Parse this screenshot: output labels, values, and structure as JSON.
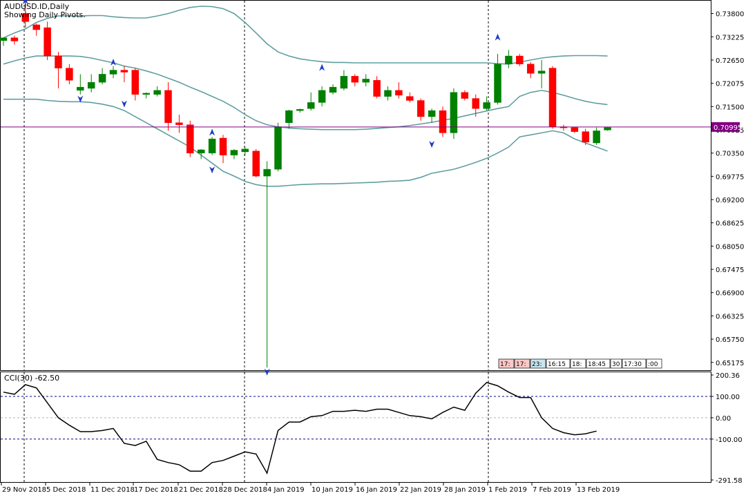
{
  "header": {
    "symbol_line": "AUDUSD.ID,Daily",
    "pivots_line": "Showing Daily Pivots."
  },
  "price_axis": {
    "ticks": [
      "0.73800",
      "0.73225",
      "0.72650",
      "0.72075",
      "0.71500",
      "0.70925",
      "0.70350",
      "0.69775",
      "0.69200",
      "0.68625",
      "0.68050",
      "0.67475",
      "0.66900",
      "0.66325",
      "0.65750",
      "0.65175"
    ],
    "current_price_label": "0.70995"
  },
  "time_axis": {
    "labels": [
      "29 Nov 2018",
      "5 Dec 2018",
      "11 Dec 2018",
      "17 Dec 2018",
      "21 Dec 2018",
      "28 Dec 2018",
      "4 Jan 2019",
      "10 Jan 2019",
      "16 Jan 2019",
      "22 Jan 2019",
      "28 Jan 2019",
      "1 Feb 2019",
      "7 Feb 2019",
      "13 Feb 2019"
    ]
  },
  "session_boxes": [
    "17:",
    "17:",
    "23:",
    "16:15",
    "18:",
    "18:45",
    "30",
    "17:30",
    ":00"
  ],
  "cci": {
    "title": "CCI(30) -62.50",
    "ticks": [
      "200.36",
      "100.00",
      "0.00",
      "-100.00",
      "-291.58"
    ]
  },
  "colors": {
    "bull": "#008000",
    "bear": "#ff0000",
    "bands": "#5f9ea0",
    "current_price_line": "#800080",
    "cci_line": "#000000",
    "level_line": "#00008b",
    "arrow": "#1e3cc8"
  },
  "chart_data": [
    {
      "type": "candlestick",
      "title": "AUDUSD.ID,Daily",
      "ylim": [
        0.65,
        0.741
      ],
      "current_price": 0.70995,
      "candles": [
        {
          "o": 0.7313,
          "h": 0.732,
          "l": 0.73,
          "c": 0.732
        },
        {
          "o": 0.732,
          "h": 0.7325,
          "l": 0.7303,
          "c": 0.7312
        },
        {
          "o": 0.738,
          "h": 0.741,
          "l": 0.7345,
          "c": 0.736
        },
        {
          "o": 0.7352,
          "h": 0.7355,
          "l": 0.7325,
          "c": 0.734
        },
        {
          "o": 0.7345,
          "h": 0.736,
          "l": 0.7265,
          "c": 0.7275
        },
        {
          "o": 0.7275,
          "h": 0.7285,
          "l": 0.7195,
          "c": 0.7245
        },
        {
          "o": 0.7245,
          "h": 0.7255,
          "l": 0.7205,
          "c": 0.7215
        },
        {
          "o": 0.719,
          "h": 0.723,
          "l": 0.718,
          "c": 0.7198
        },
        {
          "o": 0.7195,
          "h": 0.723,
          "l": 0.7185,
          "c": 0.721
        },
        {
          "o": 0.721,
          "h": 0.7245,
          "l": 0.7205,
          "c": 0.723
        },
        {
          "o": 0.723,
          "h": 0.725,
          "l": 0.722,
          "c": 0.724
        },
        {
          "o": 0.724,
          "h": 0.725,
          "l": 0.721,
          "c": 0.7235
        },
        {
          "o": 0.724,
          "h": 0.7245,
          "l": 0.7165,
          "c": 0.718
        },
        {
          "o": 0.718,
          "h": 0.7185,
          "l": 0.717,
          "c": 0.7183
        },
        {
          "o": 0.718,
          "h": 0.72,
          "l": 0.7175,
          "c": 0.719
        },
        {
          "o": 0.719,
          "h": 0.721,
          "l": 0.709,
          "c": 0.711
        },
        {
          "o": 0.711,
          "h": 0.713,
          "l": 0.7085,
          "c": 0.7105
        },
        {
          "o": 0.7105,
          "h": 0.7115,
          "l": 0.7025,
          "c": 0.7035
        },
        {
          "o": 0.7035,
          "h": 0.7045,
          "l": 0.702,
          "c": 0.7043
        },
        {
          "o": 0.7035,
          "h": 0.7075,
          "l": 0.703,
          "c": 0.707
        },
        {
          "o": 0.7072,
          "h": 0.708,
          "l": 0.701,
          "c": 0.703
        },
        {
          "o": 0.703,
          "h": 0.7045,
          "l": 0.702,
          "c": 0.7042
        },
        {
          "o": 0.7038,
          "h": 0.705,
          "l": 0.703,
          "c": 0.7045
        },
        {
          "o": 0.704,
          "h": 0.7045,
          "l": 0.6975,
          "c": 0.6978
        },
        {
          "o": 0.6978,
          "h": 0.7015,
          "l": 0.6505,
          "c": 0.6995
        },
        {
          "o": 0.6995,
          "h": 0.711,
          "l": 0.699,
          "c": 0.71
        },
        {
          "o": 0.711,
          "h": 0.7142,
          "l": 0.7095,
          "c": 0.714
        },
        {
          "o": 0.714,
          "h": 0.7145,
          "l": 0.7135,
          "c": 0.7143
        },
        {
          "o": 0.7145,
          "h": 0.7185,
          "l": 0.714,
          "c": 0.716
        },
        {
          "o": 0.716,
          "h": 0.72,
          "l": 0.715,
          "c": 0.719
        },
        {
          "o": 0.7185,
          "h": 0.7205,
          "l": 0.718,
          "c": 0.7198
        },
        {
          "o": 0.7195,
          "h": 0.724,
          "l": 0.719,
          "c": 0.7225
        },
        {
          "o": 0.7225,
          "h": 0.723,
          "l": 0.72,
          "c": 0.721
        },
        {
          "o": 0.721,
          "h": 0.723,
          "l": 0.72,
          "c": 0.7218
        },
        {
          "o": 0.7215,
          "h": 0.7225,
          "l": 0.717,
          "c": 0.7175
        },
        {
          "o": 0.7175,
          "h": 0.72,
          "l": 0.7165,
          "c": 0.719
        },
        {
          "o": 0.719,
          "h": 0.721,
          "l": 0.717,
          "c": 0.7178
        },
        {
          "o": 0.7175,
          "h": 0.7185,
          "l": 0.716,
          "c": 0.7165
        },
        {
          "o": 0.7165,
          "h": 0.717,
          "l": 0.7115,
          "c": 0.7125
        },
        {
          "o": 0.7125,
          "h": 0.7145,
          "l": 0.711,
          "c": 0.714
        },
        {
          "o": 0.714,
          "h": 0.715,
          "l": 0.7075,
          "c": 0.7085
        },
        {
          "o": 0.7085,
          "h": 0.7195,
          "l": 0.707,
          "c": 0.7185
        },
        {
          "o": 0.7185,
          "h": 0.719,
          "l": 0.7165,
          "c": 0.717
        },
        {
          "o": 0.717,
          "h": 0.718,
          "l": 0.7125,
          "c": 0.7145
        },
        {
          "o": 0.7145,
          "h": 0.7175,
          "l": 0.714,
          "c": 0.716
        },
        {
          "o": 0.716,
          "h": 0.728,
          "l": 0.7155,
          "c": 0.7255
        },
        {
          "o": 0.7255,
          "h": 0.729,
          "l": 0.7245,
          "c": 0.7275
        },
        {
          "o": 0.7275,
          "h": 0.728,
          "l": 0.725,
          "c": 0.7255
        },
        {
          "o": 0.7255,
          "h": 0.726,
          "l": 0.722,
          "c": 0.7232
        },
        {
          "o": 0.7232,
          "h": 0.7265,
          "l": 0.7195,
          "c": 0.7238
        },
        {
          "o": 0.7245,
          "h": 0.725,
          "l": 0.7095,
          "c": 0.71
        },
        {
          "o": 0.71,
          "h": 0.7105,
          "l": 0.709,
          "c": 0.7098
        },
        {
          "o": 0.7098,
          "h": 0.71,
          "l": 0.7085,
          "c": 0.7088
        },
        {
          "o": 0.7088,
          "h": 0.7095,
          "l": 0.7055,
          "c": 0.7062
        },
        {
          "o": 0.706,
          "h": 0.7098,
          "l": 0.7055,
          "c": 0.709
        },
        {
          "o": 0.7092,
          "h": 0.71,
          "l": 0.709,
          "c": 0.7098
        }
      ],
      "bands": {
        "upper": [
          0.732,
          0.7332,
          0.7342,
          0.7358,
          0.7368,
          0.7374,
          0.7374,
          0.7374,
          0.7375,
          0.7375,
          0.7372,
          0.737,
          0.7369,
          0.7369,
          0.7374,
          0.738,
          0.7388,
          0.7395,
          0.7398,
          0.7397,
          0.7392,
          0.738,
          0.7358,
          0.7332,
          0.7305,
          0.7285,
          0.7275,
          0.7268,
          0.7264,
          0.7261,
          0.7259,
          0.7259,
          0.7258,
          0.7258,
          0.7258,
          0.7258,
          0.7258,
          0.7258,
          0.7258,
          0.7258,
          0.7258,
          0.7258,
          0.7258,
          0.7258,
          0.7258,
          0.7256,
          0.7255,
          0.726,
          0.7265,
          0.727,
          0.7273,
          0.7275,
          0.7276,
          0.7276,
          0.7276,
          0.7275
        ],
        "middle": [
          0.7255,
          0.7263,
          0.727,
          0.7275,
          0.7275,
          0.7275,
          0.7275,
          0.7274,
          0.727,
          0.7264,
          0.7258,
          0.725,
          0.7245,
          0.7238,
          0.723,
          0.722,
          0.721,
          0.7198,
          0.7187,
          0.7175,
          0.7163,
          0.7148,
          0.713,
          0.7115,
          0.7105,
          0.71,
          0.7097,
          0.7095,
          0.7094,
          0.7093,
          0.7093,
          0.7093,
          0.7093,
          0.7094,
          0.7096,
          0.7098,
          0.71,
          0.7103,
          0.7107,
          0.7111,
          0.7116,
          0.7121,
          0.7127,
          0.7133,
          0.7139,
          0.7145,
          0.715,
          0.7175,
          0.7185,
          0.719,
          0.7185,
          0.7178,
          0.717,
          0.7163,
          0.7158,
          0.7155
        ],
        "lower": [
          0.7168,
          0.7168,
          0.7168,
          0.7168,
          0.7165,
          0.7163,
          0.7162,
          0.7162,
          0.716,
          0.7156,
          0.715,
          0.714,
          0.7125,
          0.711,
          0.7095,
          0.708,
          0.7065,
          0.705,
          0.703,
          0.701,
          0.699,
          0.6978,
          0.6965,
          0.6957,
          0.6953,
          0.6953,
          0.6955,
          0.6957,
          0.6958,
          0.6959,
          0.6959,
          0.696,
          0.6961,
          0.6962,
          0.6963,
          0.6965,
          0.6966,
          0.6968,
          0.6975,
          0.6985,
          0.699,
          0.6995,
          0.7003,
          0.7012,
          0.7022,
          0.7035,
          0.705,
          0.7075,
          0.708,
          0.7085,
          0.709,
          0.7085,
          0.707,
          0.706,
          0.705,
          0.704
        ]
      },
      "arrows_up": [
        2,
        46,
        57,
        67,
        86,
        84
      ],
      "arrows_down": [],
      "arrow_marks": [
        {
          "i": 2,
          "dir": "up",
          "p": 0.741
        },
        {
          "i": 10,
          "dir": "up",
          "p": 0.7258
        },
        {
          "i": 7,
          "dir": "down",
          "p": 0.717
        },
        {
          "i": 11,
          "dir": "down",
          "p": 0.7158
        },
        {
          "i": 19,
          "dir": "up",
          "p": 0.7085
        },
        {
          "i": 19,
          "dir": "down",
          "p": 0.6995
        },
        {
          "i": 29,
          "dir": "up",
          "p": 0.7245
        },
        {
          "i": 39,
          "dir": "down",
          "p": 0.7058
        },
        {
          "i": 45,
          "dir": "up",
          "p": 0.732
        },
        {
          "i": 24,
          "dir": "down",
          "p": 0.6495
        }
      ]
    },
    {
      "type": "line",
      "title": "CCI(30) -62.50",
      "ylim": [
        -291.58,
        200.36
      ],
      "levels": [
        100,
        0,
        -100
      ],
      "values": [
        120,
        110,
        155,
        140,
        70,
        0,
        -35,
        -65,
        -65,
        -60,
        -50,
        -120,
        -130,
        -110,
        -195,
        -210,
        -220,
        -250,
        -250,
        -210,
        -200,
        -180,
        -160,
        -170,
        -260,
        -60,
        -20,
        -20,
        5,
        10,
        30,
        30,
        35,
        30,
        40,
        40,
        25,
        10,
        5,
        -5,
        25,
        50,
        35,
        115,
        165,
        150,
        120,
        95,
        95,
        0,
        -50,
        -70,
        -80,
        -75,
        -62.5
      ]
    }
  ]
}
